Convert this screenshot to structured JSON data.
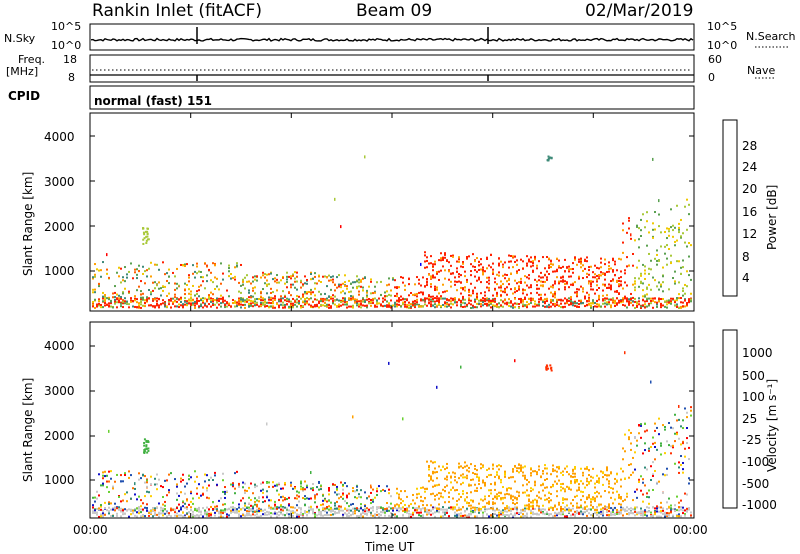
{
  "header": {
    "station": "Rankin Inlet (fitACF)",
    "beam": "Beam 09",
    "date": "02/Mar/2019"
  },
  "nsky_panel": {
    "left_label": "N.Sky",
    "left_ticks": [
      "10^5",
      "10^0"
    ],
    "right_label": "N.Search",
    "right_ticks": [
      "10^5",
      "10^0"
    ]
  },
  "freq_panel": {
    "left_label": "Freq.",
    "left_unit": "[MHz]",
    "left_ticks": [
      "18",
      "8"
    ],
    "right_label": "Nave",
    "right_ticks": [
      "60",
      "0"
    ]
  },
  "cpid": {
    "label": "CPID",
    "value": "normal (fast) 151"
  },
  "chart_data": [
    {
      "type": "heatmap",
      "name": "power",
      "ylabel": "Slant Range [km]",
      "ylim": [
        180,
        4600
      ],
      "yticks": [
        "1000",
        "2000",
        "3000",
        "4000"
      ],
      "x_ticks": [
        "00:00",
        "04:00",
        "08:00",
        "12:00",
        "16:00",
        "20:00",
        "00:00"
      ],
      "colorbar": {
        "label": "Power [dB]",
        "ticks": [
          "4",
          "8",
          "12",
          "16",
          "20",
          "24",
          "28"
        ],
        "colors": [
          "#0000ff",
          "#2244aa",
          "#3e8a78",
          "#5aa050",
          "#a8c838",
          "#f0c800",
          "#ffa000",
          "#ff6000",
          "#ff2000",
          "#ff0000"
        ]
      }
    },
    {
      "type": "heatmap",
      "name": "velocity",
      "ylabel": "Slant Range [km]",
      "ylim": [
        180,
        4600
      ],
      "yticks": [
        "1000",
        "2000",
        "3000",
        "4000"
      ],
      "x_ticks": [
        "00:00",
        "04:00",
        "08:00",
        "12:00",
        "16:00",
        "20:00",
        "00:00"
      ],
      "xlabel": "Time UT",
      "colorbar": {
        "label": "Velocity [m s⁻¹]",
        "ticks": [
          "1000",
          "500",
          "100",
          "25",
          "-25",
          "-100",
          "-500",
          "-1000"
        ],
        "colors": [
          "#1010c8",
          "#2050b0",
          "#2e8a78",
          "#40b040",
          "#68d030",
          "#c8c8c8",
          "#ffd000",
          "#ffa000",
          "#ff7000",
          "#ff3000",
          "#ff0000"
        ]
      }
    }
  ]
}
